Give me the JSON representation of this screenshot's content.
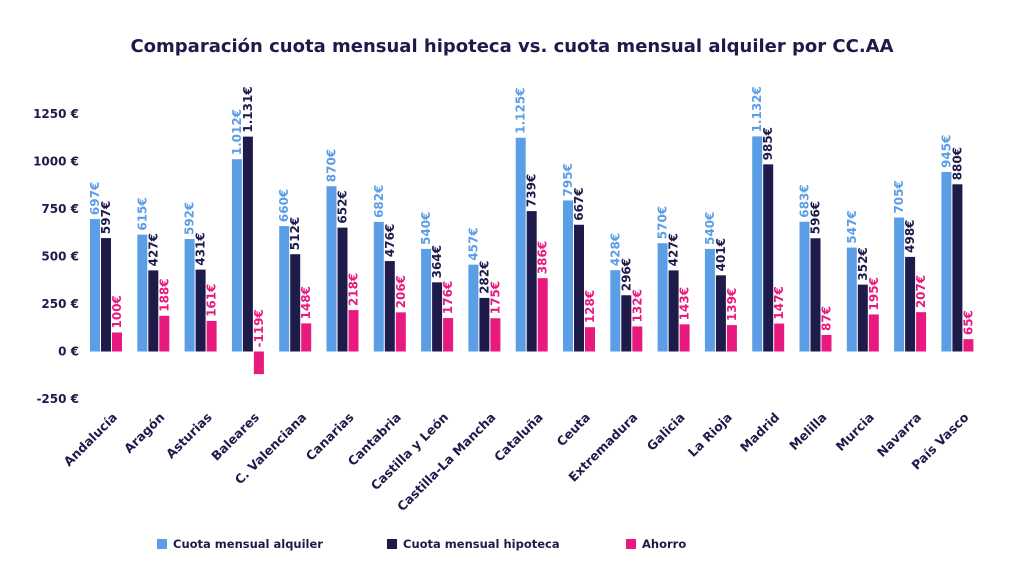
{
  "chart_data": {
    "type": "bar",
    "title": "Comparación cuota mensual hipoteca vs. cuota mensual alquiler por CC.AA",
    "categories": [
      "Andalucía",
      "Aragón",
      "Asturias",
      "Baleares",
      "C. Valenciana",
      "Canarias",
      "Cantabria",
      "Castilla y León",
      "Castilla-La Mancha",
      "Cataluña",
      "Ceuta",
      "Extremadura",
      "Galicia",
      "La Rioja",
      "Madrid",
      "Melilla",
      "Murcia",
      "Navarra",
      "País Vasco"
    ],
    "series": [
      {
        "name": "Cuota mensual alquiler",
        "color": "#5b9ee6",
        "values": [
          697,
          615,
          592,
          1012,
          660,
          870,
          682,
          540,
          457,
          1125,
          795,
          428,
          570,
          540,
          1132,
          683,
          547,
          705,
          945
        ],
        "labels": [
          "697€",
          "615€",
          "592€",
          "1.012€",
          "660€",
          "870€",
          "682€",
          "540€",
          "457€",
          "1.125€",
          "795€",
          "428€",
          "570€",
          "540€",
          "1.132€",
          "683€",
          "547€",
          "705€",
          "945€"
        ]
      },
      {
        "name": "Cuota mensual hipoteca",
        "color": "#1e1b4b",
        "values": [
          597,
          427,
          431,
          1131,
          512,
          652,
          476,
          364,
          282,
          739,
          667,
          296,
          427,
          401,
          985,
          596,
          352,
          498,
          880
        ],
        "labels": [
          "597€",
          "427€",
          "431€",
          "1.131€",
          "512€",
          "652€",
          "476€",
          "364€",
          "282€",
          "739€",
          "667€",
          "296€",
          "427€",
          "401€",
          "985€",
          "596€",
          "352€",
          "498€",
          "880€"
        ]
      },
      {
        "name": "Ahorro",
        "color": "#e8197f",
        "values": [
          100,
          188,
          161,
          -119,
          148,
          218,
          206,
          176,
          175,
          386,
          128,
          132,
          143,
          139,
          147,
          87,
          195,
          207,
          65
        ],
        "labels": [
          "100€",
          "188€",
          "161€",
          "-119€",
          "148€",
          "218€",
          "206€",
          "176€",
          "175€",
          "386€",
          "128€",
          "132€",
          "143€",
          "139€",
          "147€",
          "87€",
          "195€",
          "207€",
          "65€"
        ]
      }
    ],
    "yticks": [
      -250,
      0,
      250,
      500,
      750,
      1000,
      1250
    ],
    "ytick_labels": [
      "-250 €",
      "0 €",
      "250 €",
      "500 €",
      "750 €",
      "1000 €",
      "1250 €"
    ],
    "ylim": [
      -250,
      1300
    ],
    "grid": false,
    "legend_position": "bottom"
  }
}
